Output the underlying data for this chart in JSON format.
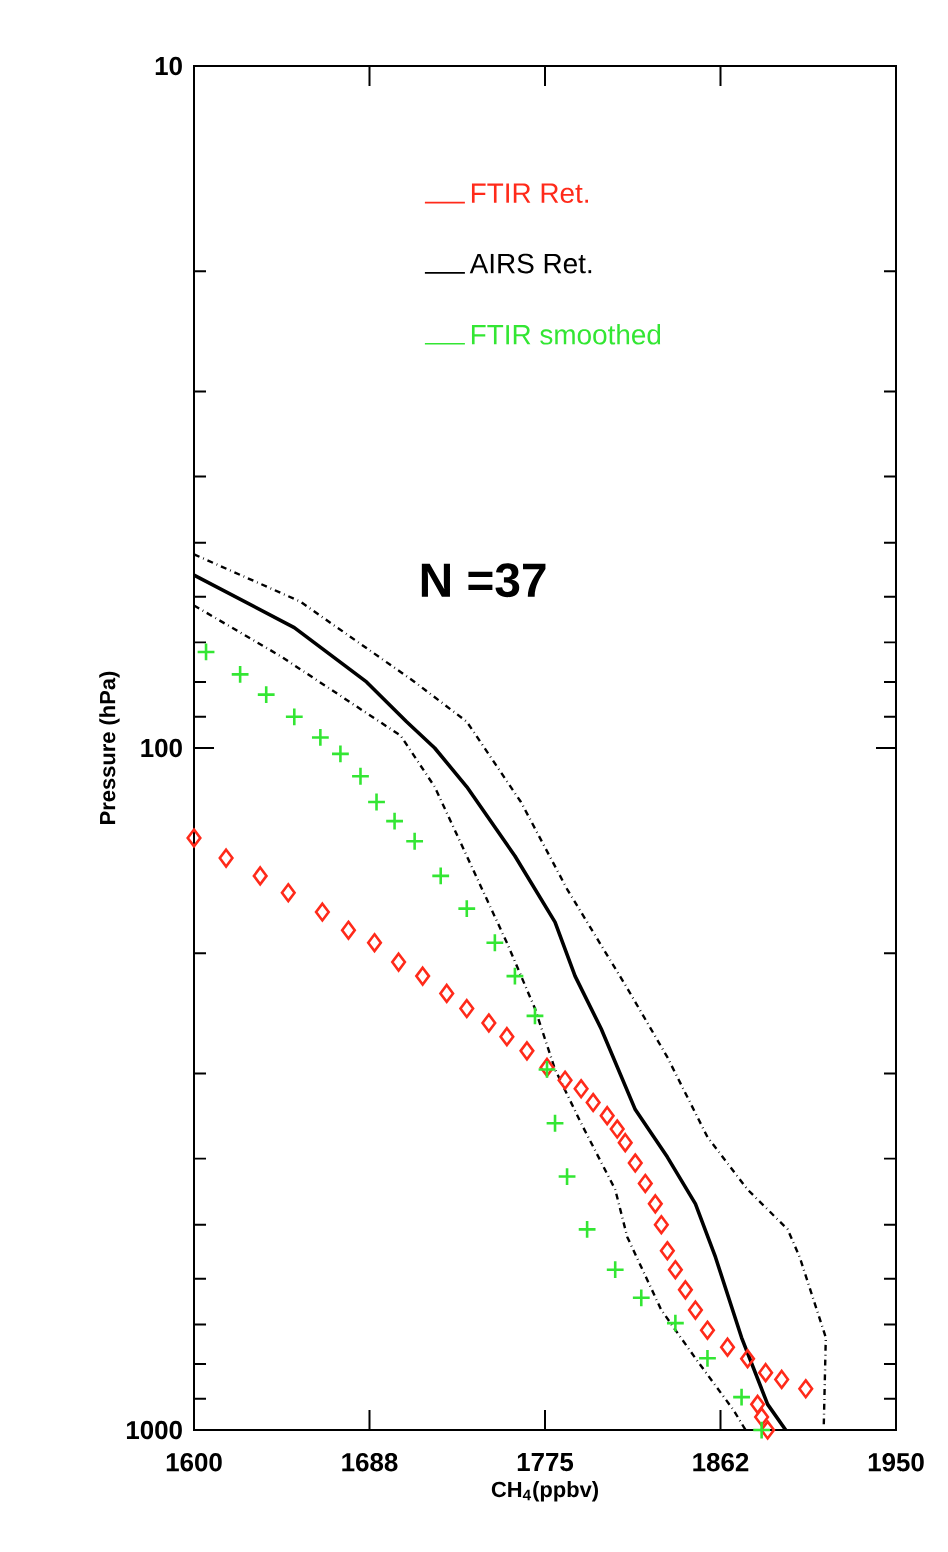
{
  "chart_data": {
    "type": "scatter",
    "xlabel": "CH$_{4}$(ppbv)",
    "ylabel": "Pressure (hPa)",
    "xlim": [
      1600,
      1950
    ],
    "ylim": [
      1000,
      10
    ],
    "log": "y",
    "xticks": [
      1600,
      {
        "value": 1687.5,
        "label": "1688"
      },
      1775,
      {
        "value": 1862.5,
        "label": "1862"
      },
      1950
    ],
    "yticks": [
      10,
      100,
      1000
    ],
    "legend": "top",
    "annotations": [
      "N =37"
    ],
    "series": [
      {
        "name": "FTIR Ret.",
        "marker": "diamond",
        "color": "#ff2a1a",
        "x": [
          1600,
          1616,
          1633,
          1647,
          1664,
          1677,
          1690,
          1702,
          1714,
          1726,
          1736,
          1747,
          1756,
          1766,
          1776,
          1785,
          1793,
          1799,
          1806,
          1811,
          1815,
          1820,
          1825,
          1830,
          1833,
          1836,
          1840,
          1845,
          1850,
          1856,
          1866,
          1876,
          1885,
          1893,
          1905,
          1881,
          1883,
          1886
        ],
        "values": [
          135.5,
          145,
          154,
          163,
          174,
          185,
          193,
          206,
          216,
          229,
          241,
          253,
          265,
          278,
          294,
          307,
          316,
          331,
          346,
          362,
          379,
          406,
          435,
          466,
          500,
          546,
          582,
          623,
          667,
          714,
          756,
          786,
          824,
          843,
          870,
          917,
          957,
          1000
        ]
      },
      {
        "name": "AIRS Ret.",
        "type": "line",
        "line_style": "solid",
        "color": "#000000",
        "x": [
          1600,
          1650,
          1686,
          1706,
          1720,
          1736,
          1760,
          1780,
          1790,
          1803,
          1820,
          1836,
          1850,
          1860,
          1873,
          1886,
          1895
        ],
        "values": [
          55.8,
          66.6,
          80,
          91.5,
          100,
          114,
          144,
          180,
          216,
          258,
          339,
          398,
          466,
          558,
          732,
          917,
          1000
        ]
      },
      {
        "name": "FTIR smoothed",
        "marker": "cross",
        "color": "#33e633",
        "x": [
          1606,
          1623,
          1636,
          1650,
          1663,
          1673,
          1683,
          1691,
          1700,
          1710,
          1723,
          1736,
          1750,
          1760,
          1770,
          1776,
          1780,
          1786,
          1796,
          1810,
          1823,
          1840,
          1856,
          1873,
          1883
        ],
        "values": [
          72.3,
          78,
          83.5,
          90,
          96.5,
          102,
          110,
          120,
          128,
          137,
          154,
          172,
          193,
          216,
          247,
          296,
          355,
          425,
          508,
          582,
          640,
          697,
          785,
          895,
          1000
        ]
      },
      {
        "type": "line",
        "line_style": "dashdot",
        "color": "#000000",
        "x": [
          1600,
          1653,
          1710,
          1736,
          1763,
          1786,
          1816,
          1836,
          1856,
          1876,
          1896,
          1902,
          1915,
          1914
        ],
        "values": [
          52,
          61,
          80,
          91.5,
          120,
          161,
          225,
          284,
          372,
          444,
          508,
          558,
          732,
          981
        ]
      },
      {
        "type": "line",
        "line_style": "dashdot",
        "color": "#000000",
        "x": [
          1600,
          1643,
          1703,
          1720,
          1736,
          1756,
          1770,
          1780,
          1793,
          1810,
          1816,
          1833,
          1850,
          1869,
          1875
        ],
        "values": [
          61.8,
          73.3,
          95.9,
          114,
          144,
          193,
          241,
          296,
          355,
          444,
          521,
          667,
          785,
          935,
          1000
        ]
      }
    ]
  }
}
